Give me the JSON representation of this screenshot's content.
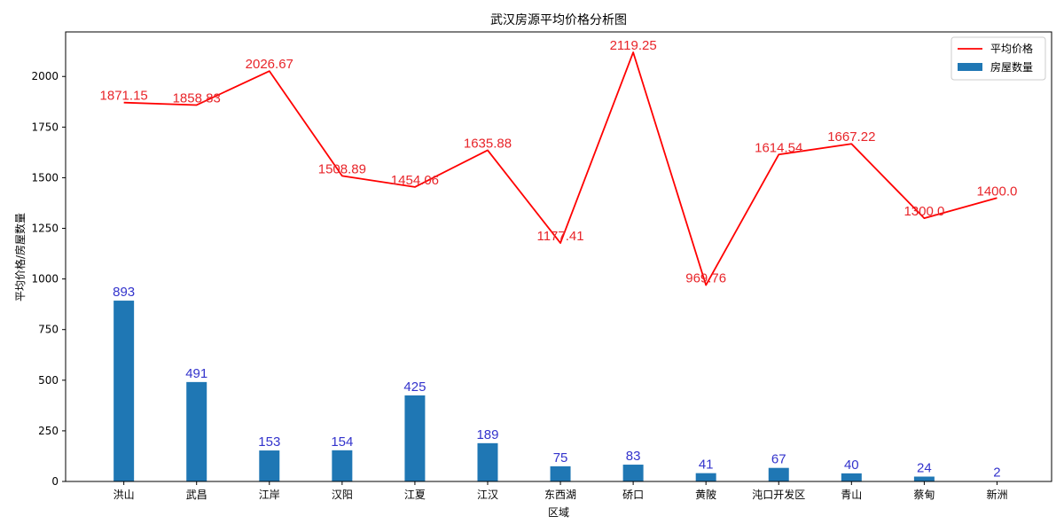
{
  "chart_data": {
    "type": "bar+line",
    "title": "武汉房源平均价格分析图",
    "xlabel": "区域",
    "ylabel": "平均价格/房屋数量",
    "categories": [
      "洪山",
      "武昌",
      "江岸",
      "汉阳",
      "江夏",
      "江汉",
      "东西湖",
      "硚口",
      "黄陂",
      "沌口开发区",
      "青山",
      "蔡甸",
      "新洲"
    ],
    "series": [
      {
        "name": "平均价格",
        "kind": "line",
        "color": "#ff0000",
        "values": [
          1871.15,
          1858.83,
          2026.67,
          1508.89,
          1454.06,
          1635.88,
          1177.41,
          2119.25,
          969.76,
          1614.54,
          1667.22,
          1300.0,
          1400.0
        ],
        "labels": [
          "1871.15",
          "1858.83",
          "2026.67",
          "1508.89",
          "1454.06",
          "1635.88",
          "1177.41",
          "2119.25",
          "969.76",
          "1614.54",
          "1667.22",
          "1300.0",
          "1400.0"
        ],
        "label_color": "#e8252a"
      },
      {
        "name": "房屋数量",
        "kind": "bar",
        "color": "#1f77b4",
        "values": [
          893,
          491,
          153,
          154,
          425,
          189,
          75,
          83,
          41,
          67,
          40,
          24,
          2
        ],
        "labels": [
          "893",
          "491",
          "153",
          "154",
          "425",
          "189",
          "75",
          "83",
          "41",
          "67",
          "40",
          "24",
          "2"
        ],
        "label_color": "#3333cc"
      }
    ],
    "ylim": [
      0,
      2220
    ],
    "yticks": [
      0,
      250,
      500,
      750,
      1000,
      1250,
      1500,
      1750,
      2000
    ],
    "grid": false,
    "legend": "top-right"
  }
}
